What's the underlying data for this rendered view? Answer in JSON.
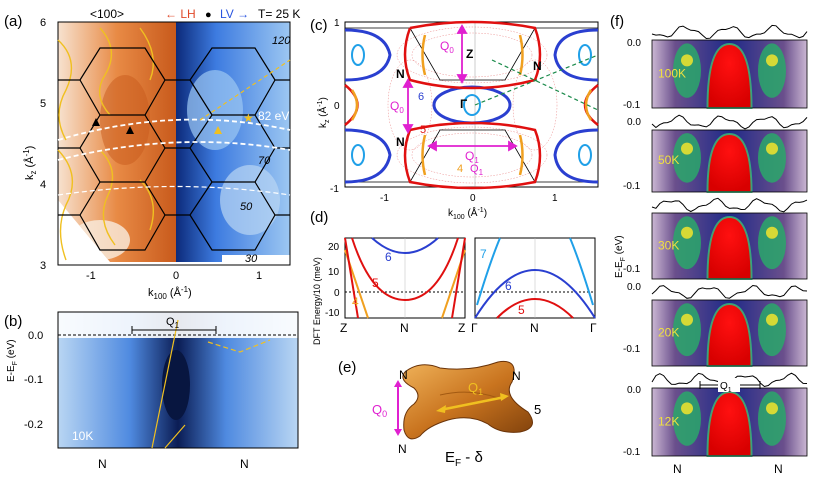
{
  "panels": {
    "a": "(a)",
    "b": "(b)",
    "c": "(c)",
    "d": "(d)",
    "e": "(e)",
    "f": "(f)"
  },
  "panel_a": {
    "direction": "<100>",
    "lh": "← LH",
    "dot": "●",
    "lv": "LV →",
    "temp": "T= 25 K",
    "ylabel_k": "k",
    "ylabel_sub": "z",
    "ylabel_unit": " (Å",
    "ylabel_exp": "-1",
    "ylabel_close": ")",
    "xlabel_k": "k",
    "xlabel_sub": "100",
    "xlabel_unit": " (Å",
    "xlabel_exp": "-1",
    "xlabel_close": ")",
    "yticks": [
      "6",
      "5",
      "4",
      "3"
    ],
    "xticks": [
      "-1",
      "0",
      "1"
    ],
    "energies": [
      "120",
      "82 eV",
      "70",
      "50",
      "30"
    ],
    "colors": {
      "lh": "#e04a2a",
      "lv": "#2a55e0",
      "blue_map": "#2f6fd6",
      "orange_map": "#e0752a",
      "gold": "#f0c020"
    }
  },
  "panel_b": {
    "ylabel": "E-E",
    "ylabel_sub": "F",
    "ylabel_unit": " (eV)",
    "yticks": [
      "0.0",
      "-0.1",
      "-0.2"
    ],
    "q1": "Q",
    "q1_sub": "1",
    "temp": "10K",
    "xticks": [
      "N",
      "N"
    ]
  },
  "panel_c": {
    "ylabel_k": "k",
    "ylabel_sub": "z",
    "ylabel_unit": " (Å",
    "ylabel_exp": "-1",
    "ylabel_close": ")",
    "xlabel_k": "k",
    "xlabel_sub": "100",
    "xlabel_unit": " (Å",
    "xlabel_exp": "-1",
    "xlabel_close": ")",
    "yticks": [
      "1",
      "0",
      "-1"
    ],
    "xticks": [
      "-1",
      "0",
      "1"
    ],
    "points": [
      "Z",
      "N",
      "N",
      "Γ",
      "N"
    ],
    "q0": "Q",
    "q0_sub": "0",
    "q0b": "Q",
    "q0b_sub": "0",
    "q1": "Q",
    "q1_sub": "1",
    "q1b": "Q",
    "q1b_sub": "1",
    "band6": "6",
    "band5": "5",
    "band4": "4"
  },
  "panel_d": {
    "ylabel": "DFT Energy/10 (meV)",
    "yticks": [
      "20",
      "10",
      "0",
      "-10"
    ],
    "left_xticks": [
      "Z",
      "N",
      "Z"
    ],
    "right_xticks": [
      "Γ",
      "N",
      "Γ"
    ],
    "bands_left": [
      "6",
      "5",
      "4"
    ],
    "bands_right": [
      "7",
      "6",
      "5"
    ]
  },
  "panel_e": {
    "n1": "N",
    "n2": "N",
    "n3": "N",
    "q0": "Q",
    "q0_sub": "0",
    "q1": "Q",
    "q1_sub": "1",
    "band": "5",
    "caption": "E",
    "caption_sub": "F",
    "caption_rest": " - δ"
  },
  "panel_f": {
    "ylabel": "E-E",
    "ylabel_sub": "F",
    "ylabel_unit": " (eV)",
    "temps": [
      "100K",
      "50K",
      "30K",
      "20K",
      "12K"
    ],
    "yticks_top": [
      "0.0",
      "-0.1"
    ],
    "q1": "Q",
    "q1_sub": "1",
    "xticks": [
      "N",
      "N"
    ]
  }
}
